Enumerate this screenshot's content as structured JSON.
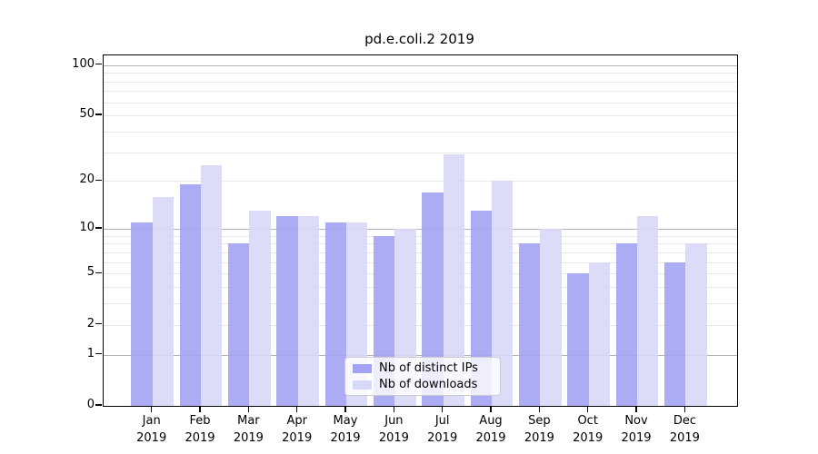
{
  "title": "pd.e.coli.2 2019",
  "colors": {
    "ips": "#a3a3f3",
    "downloads": "#d8d8f8",
    "grid_major": "#b3b3b3",
    "grid_minor": "#e8e8e8",
    "axis": "#000000"
  },
  "legend": {
    "items": [
      {
        "label": "Nb of distinct IPs",
        "series": "ips"
      },
      {
        "label": "Nb of downloads",
        "series": "downloads"
      }
    ]
  },
  "y_axis": {
    "tick_labels": [
      "0",
      "1",
      "2",
      "5",
      "10",
      "20",
      "50",
      "100"
    ]
  },
  "x_axis": {
    "months": [
      "Jan",
      "Feb",
      "Mar",
      "Apr",
      "May",
      "Jun",
      "Jul",
      "Aug",
      "Sep",
      "Oct",
      "Nov",
      "Dec"
    ],
    "year": "2019"
  },
  "chart_data": {
    "type": "bar",
    "title": "pd.e.coli.2 2019",
    "categories": [
      "Jan 2019",
      "Feb 2019",
      "Mar 2019",
      "Apr 2019",
      "May 2019",
      "Jun 2019",
      "Jul 2019",
      "Aug 2019",
      "Sep 2019",
      "Oct 2019",
      "Nov 2019",
      "Dec 2019"
    ],
    "series": [
      {
        "name": "Nb of distinct IPs",
        "color": "#a3a3f3",
        "values": [
          11,
          19,
          8,
          12,
          11,
          9,
          17,
          13,
          8,
          5,
          8,
          6
        ]
      },
      {
        "name": "Nb of downloads",
        "color": "#d8d8f8",
        "values": [
          16,
          25,
          13,
          12,
          11,
          10,
          29,
          20,
          10,
          6,
          12,
          8
        ]
      }
    ],
    "xlabel": "",
    "ylabel": "",
    "y_scale": "log1p",
    "y_ticks": [
      0,
      1,
      2,
      5,
      10,
      20,
      50,
      100
    ],
    "y_minor_gridlines": [
      2,
      3,
      4,
      5,
      6,
      7,
      8,
      9,
      20,
      30,
      40,
      50,
      60,
      70,
      80,
      90
    ],
    "y_major_gridlines": [
      1,
      10,
      100
    ],
    "ylim": [
      0,
      114
    ],
    "grid": "horizontal",
    "legend_position": "inside-bottom-center"
  }
}
